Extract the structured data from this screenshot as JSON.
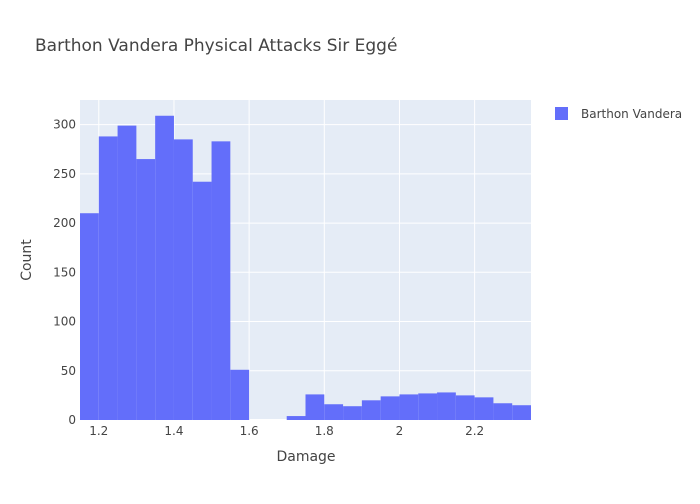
{
  "chart_data": {
    "type": "bar",
    "subtype": "histogram",
    "title": "Barthon Vandera Physical Attacks Sir Eggé",
    "xlabel": "Damage",
    "ylabel": "Count",
    "xlim": [
      1.15,
      2.35
    ],
    "ylim": [
      0,
      325
    ],
    "bin_width": 0.05,
    "x_ticks": [
      1.2,
      1.4,
      1.6,
      1.8,
      2,
      2.2
    ],
    "x_tick_labels": [
      "1.2",
      "1.4",
      "1.6",
      "1.8",
      "2",
      "2.2"
    ],
    "y_ticks": [
      0,
      50,
      100,
      150,
      200,
      250,
      300
    ],
    "y_tick_labels": [
      "0",
      "50",
      "100",
      "150",
      "200",
      "250",
      "300"
    ],
    "grid": true,
    "legend_position": "top-right",
    "plot_background": "#e5ecf6",
    "series": [
      {
        "name": "Barthon Vandera",
        "color": "#636efa",
        "bins": [
          {
            "x0": 1.15,
            "x1": 1.2,
            "count": 210
          },
          {
            "x0": 1.2,
            "x1": 1.25,
            "count": 288
          },
          {
            "x0": 1.25,
            "x1": 1.3,
            "count": 299
          },
          {
            "x0": 1.3,
            "x1": 1.35,
            "count": 265
          },
          {
            "x0": 1.35,
            "x1": 1.4,
            "count": 309
          },
          {
            "x0": 1.4,
            "x1": 1.45,
            "count": 285
          },
          {
            "x0": 1.45,
            "x1": 1.5,
            "count": 242
          },
          {
            "x0": 1.5,
            "x1": 1.55,
            "count": 283
          },
          {
            "x0": 1.55,
            "x1": 1.6,
            "count": 51
          },
          {
            "x0": 1.6,
            "x1": 1.65,
            "count": 0
          },
          {
            "x0": 1.65,
            "x1": 1.7,
            "count": 0
          },
          {
            "x0": 1.7,
            "x1": 1.75,
            "count": 4
          },
          {
            "x0": 1.75,
            "x1": 1.8,
            "count": 26
          },
          {
            "x0": 1.8,
            "x1": 1.85,
            "count": 16
          },
          {
            "x0": 1.85,
            "x1": 1.9,
            "count": 14
          },
          {
            "x0": 1.9,
            "x1": 1.95,
            "count": 20
          },
          {
            "x0": 1.95,
            "x1": 2.0,
            "count": 24
          },
          {
            "x0": 2.0,
            "x1": 2.05,
            "count": 26
          },
          {
            "x0": 2.05,
            "x1": 2.1,
            "count": 27
          },
          {
            "x0": 2.1,
            "x1": 2.15,
            "count": 28
          },
          {
            "x0": 2.15,
            "x1": 2.2,
            "count": 25
          },
          {
            "x0": 2.2,
            "x1": 2.25,
            "count": 23
          },
          {
            "x0": 2.25,
            "x1": 2.3,
            "count": 17
          },
          {
            "x0": 2.3,
            "x1": 2.35,
            "count": 15
          }
        ]
      }
    ]
  }
}
